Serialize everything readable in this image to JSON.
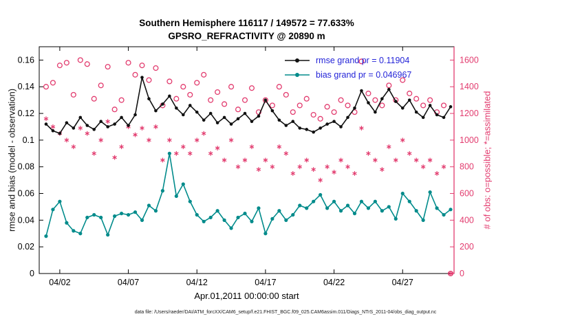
{
  "chart_data": {
    "type": "line",
    "title": "Southern Hemisphere 116117 / 149572 = 77.633%",
    "subtitle": "GPSRO_REFRACTIVITY @ 20890 m",
    "xlabel": "Apr.01,2011 00:00:00 start",
    "ylabel_left": "rmse and bias (model - observation)",
    "ylabel_right": "# of obs: o=possible; *=assimilated",
    "legend_position": "top-right-inside",
    "grid": false,
    "colors": {
      "rmse": "#111111",
      "bias": "#008b8b",
      "obs": "#e23b6e",
      "legend_text": "#2424d8"
    },
    "x_domain": [
      0.5,
      30.75
    ],
    "y_left": {
      "domain": [
        0,
        0.17
      ],
      "ticks": [
        0,
        0.02,
        0.04,
        0.06,
        0.08,
        0.1,
        0.12,
        0.14,
        0.16
      ],
      "tick_labels": [
        "0",
        "0.02",
        "0.04",
        "0.06",
        "0.08",
        "0.1",
        "0.12",
        "0.14",
        "0.16"
      ]
    },
    "y_right": {
      "domain": [
        0,
        1700
      ],
      "ticks": [
        0,
        200,
        400,
        600,
        800,
        1000,
        1200,
        1400,
        1600
      ],
      "tick_labels": [
        "0",
        "200",
        "400",
        "600",
        "800",
        "1000",
        "1200",
        "1400",
        "1600"
      ]
    },
    "x_ticks": {
      "values": [
        2,
        7,
        12,
        17,
        22,
        27
      ],
      "labels": [
        "04/02",
        "04/07",
        "04/12",
        "04/17",
        "04/22",
        "04/27"
      ]
    },
    "stats": {
      "rmse_grand_pr": 0.11904,
      "bias_grand_pr": 0.046967
    },
    "x": [
      1,
      1.5,
      2,
      2.5,
      3,
      3.5,
      4,
      4.5,
      5,
      5.5,
      6,
      6.5,
      7,
      7.5,
      8,
      8.5,
      9,
      9.5,
      10,
      10.5,
      11,
      11.5,
      12,
      12.5,
      13,
      13.5,
      14,
      14.5,
      15,
      15.5,
      16,
      16.5,
      17,
      17.5,
      18,
      18.5,
      19,
      19.5,
      20,
      20.5,
      21,
      21.5,
      22,
      22.5,
      23,
      23.5,
      24,
      24.5,
      25,
      25.5,
      26,
      26.5,
      27,
      27.5,
      28,
      28.5,
      29,
      29.5,
      30,
      30.5
    ],
    "series": [
      {
        "name": "rmse",
        "axis": "left",
        "style": "line-dot",
        "legend": "rmse grand pr = 0.11904",
        "values": [
          0.112,
          0.107,
          0.105,
          0.113,
          0.109,
          0.117,
          0.111,
          0.108,
          0.114,
          0.11,
          0.112,
          0.117,
          0.111,
          0.119,
          0.147,
          0.131,
          0.122,
          0.127,
          0.133,
          0.124,
          0.119,
          0.126,
          0.121,
          0.115,
          0.12,
          0.113,
          0.117,
          0.112,
          0.116,
          0.12,
          0.114,
          0.118,
          0.13,
          0.122,
          0.115,
          0.111,
          0.114,
          0.109,
          0.108,
          0.106,
          0.109,
          0.112,
          0.114,
          0.11,
          0.117,
          0.124,
          0.137,
          0.128,
          0.121,
          0.131,
          0.138,
          0.129,
          0.124,
          0.13,
          0.121,
          0.117,
          0.126,
          0.119,
          0.117,
          0.125
        ]
      },
      {
        "name": "bias",
        "axis": "left",
        "style": "line-dot",
        "legend": "bias grand pr = 0.046967",
        "values": [
          0.028,
          0.048,
          0.054,
          0.038,
          0.032,
          0.03,
          0.042,
          0.044,
          0.042,
          0.029,
          0.043,
          0.045,
          0.044,
          0.046,
          0.04,
          0.051,
          0.047,
          0.062,
          0.09,
          0.058,
          0.067,
          0.054,
          0.044,
          0.039,
          0.042,
          0.047,
          0.04,
          0.034,
          0.042,
          0.045,
          0.039,
          0.049,
          0.03,
          0.041,
          0.047,
          0.04,
          0.044,
          0.051,
          0.049,
          0.054,
          0.059,
          0.049,
          0.054,
          0.047,
          0.051,
          0.045,
          0.054,
          0.049,
          0.054,
          0.047,
          0.05,
          0.041,
          0.06,
          0.054,
          0.047,
          0.04,
          0.061,
          0.049,
          0.044,
          0.048
        ]
      },
      {
        "name": "possible",
        "axis": "right",
        "style": "open-circle",
        "values": [
          1400,
          1430,
          1560,
          1580,
          1340,
          1600,
          1570,
          1310,
          1410,
          1550,
          1230,
          1300,
          1580,
          1490,
          1560,
          1450,
          1540,
          1260,
          1440,
          1310,
          1400,
          1340,
          1430,
          1490,
          1300,
          1360,
          1270,
          1400,
          1230,
          1300,
          1390,
          1210,
          1300,
          1260,
          1400,
          1340,
          1210,
          1260,
          1310,
          1190,
          1160,
          1250,
          1210,
          1300,
          1260,
          1210,
          1590,
          1350,
          1300,
          1260,
          1410,
          1300,
          1450,
          1350,
          1310,
          1260,
          1300,
          1210,
          1260,
          0
        ]
      },
      {
        "name": "assimilated",
        "axis": "right",
        "style": "asterisk",
        "values": [
          1160,
          1100,
          1050,
          1000,
          950,
          1090,
          1050,
          900,
          1000,
          1140,
          870,
          950,
          1100,
          1040,
          1090,
          1000,
          1100,
          850,
          1000,
          900,
          950,
          900,
          1000,
          1050,
          900,
          940,
          850,
          1000,
          800,
          850,
          950,
          780,
          850,
          800,
          950,
          900,
          750,
          800,
          850,
          780,
          700,
          800,
          760,
          850,
          800,
          750,
          1090,
          900,
          850,
          780,
          950,
          850,
          1000,
          900,
          850,
          800,
          850,
          750,
          800,
          0
        ]
      }
    ]
  },
  "footer": {
    "caption": "data file: /Users/raeder/DAI/ATM_forcXX/CAM6_setup/f.e21.FHIST_BGC.f09_025.CAM6assim.011/Diags_NTrS_2011-04/obs_diag_output.nc"
  }
}
